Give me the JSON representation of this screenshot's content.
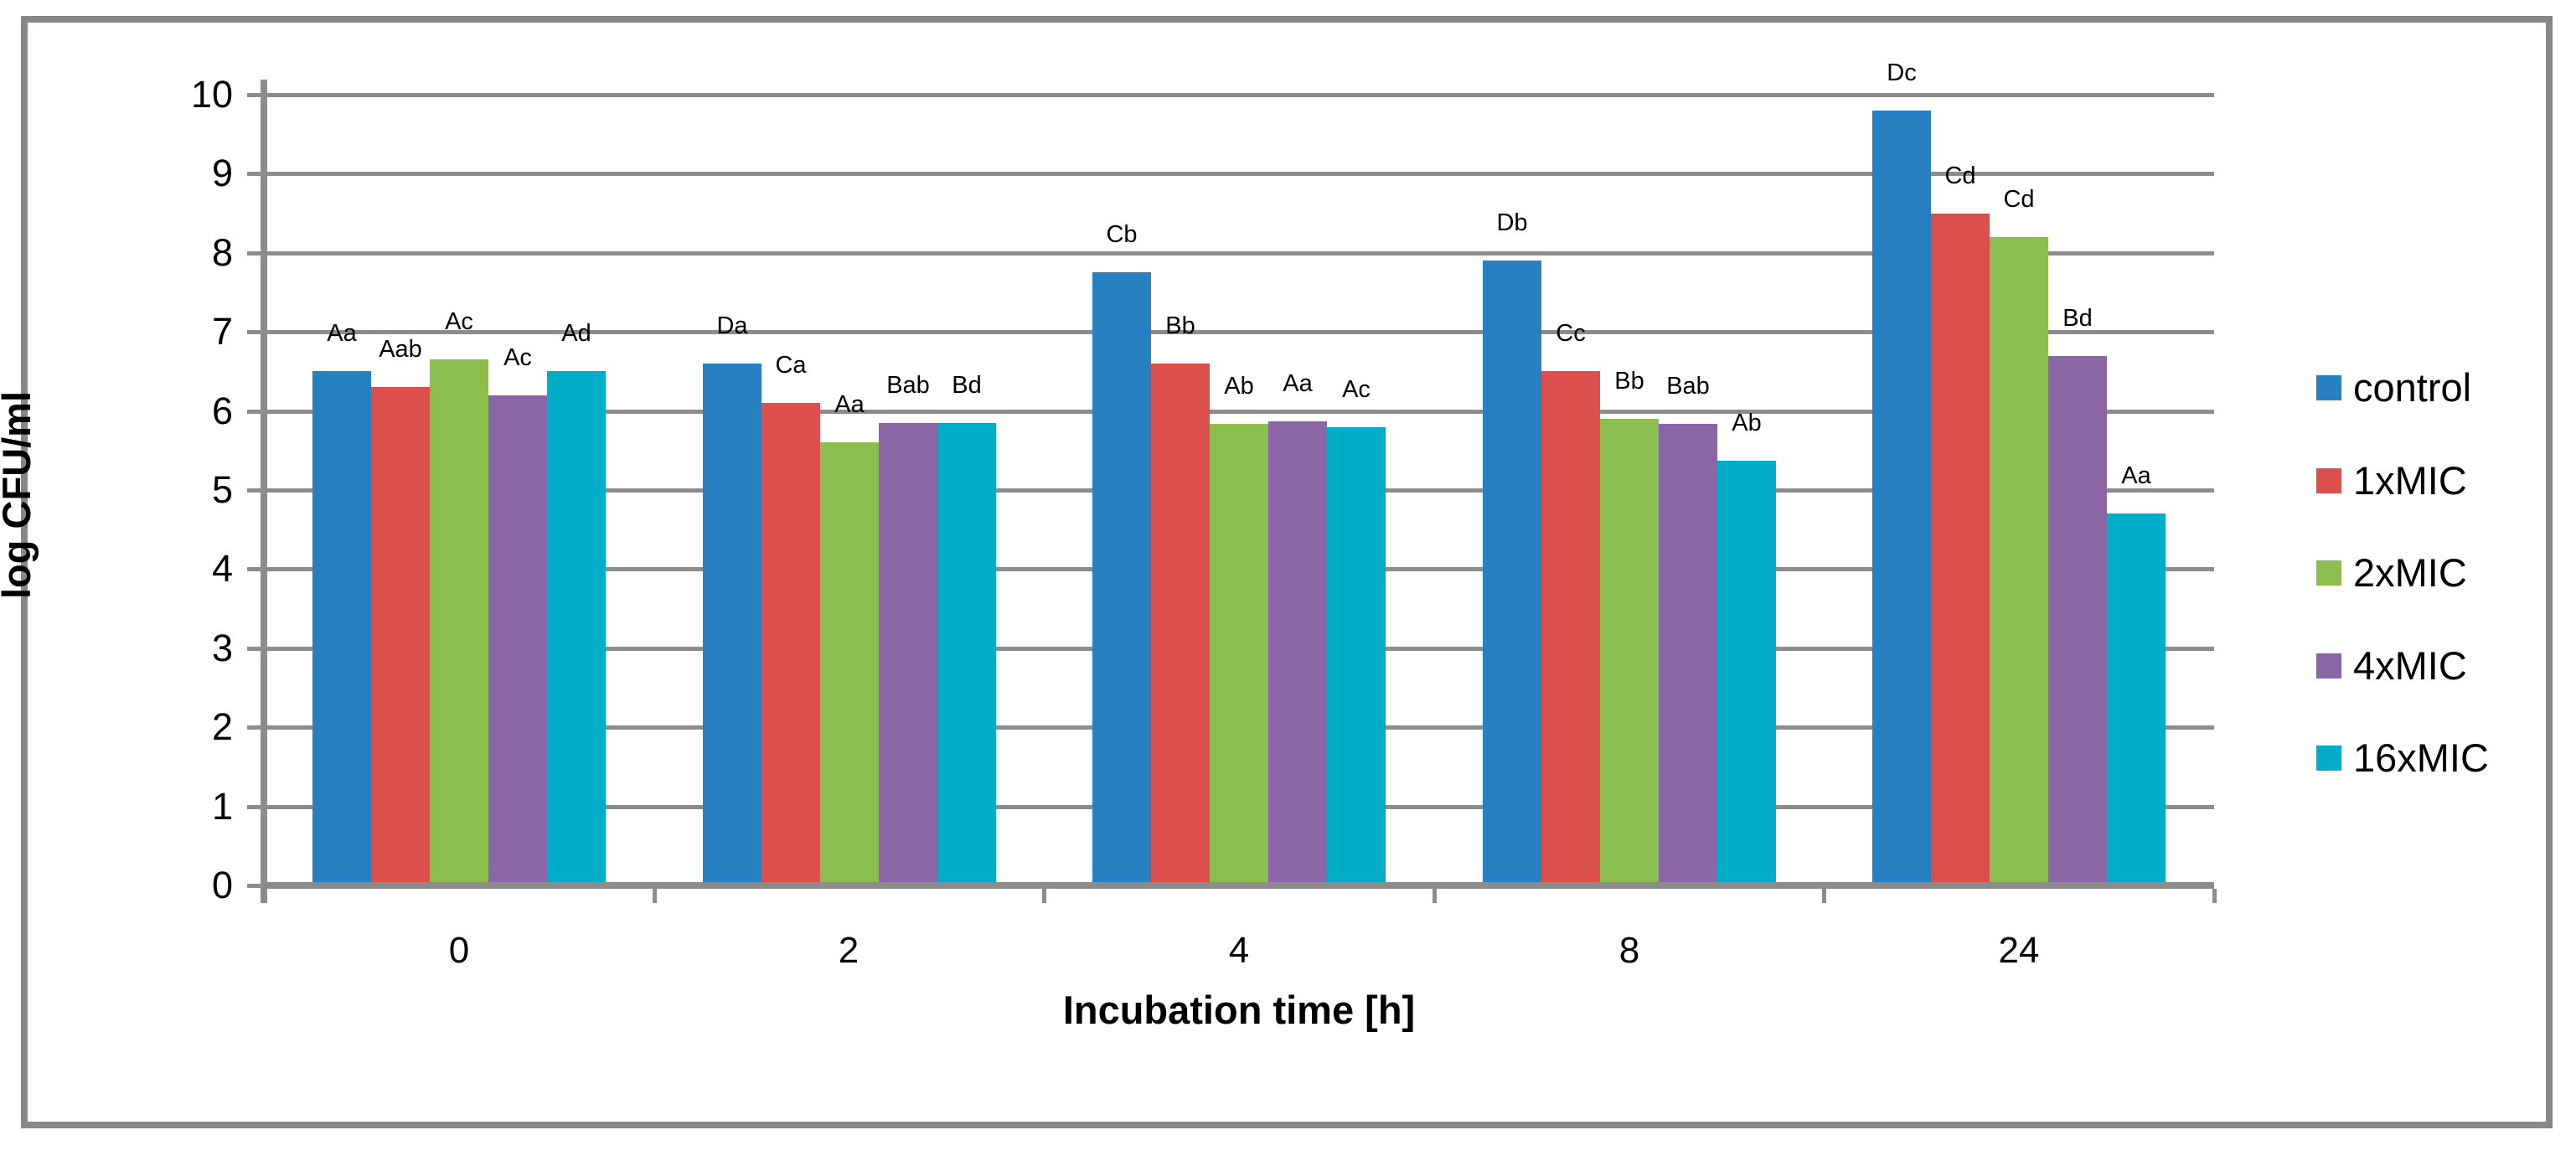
{
  "chart_data": {
    "type": "bar",
    "title": "",
    "xlabel": "Incubation time [h]",
    "ylabel": "log CFU/ml",
    "ylim": [
      0,
      10
    ],
    "yticks": [
      0,
      1,
      2,
      3,
      4,
      5,
      6,
      7,
      8,
      9,
      10
    ],
    "grid": true,
    "legend_position": "right",
    "categories": [
      "0",
      "2",
      "4",
      "8",
      "24"
    ],
    "series": [
      {
        "name": "control",
        "color": "#2680C2",
        "values": [
          6.5,
          6.6,
          7.75,
          7.9,
          9.8
        ],
        "bar_labels": [
          "Aa",
          "Da",
          "Cb",
          "Db",
          "Dc"
        ]
      },
      {
        "name": "1xMIC",
        "color": "#DB4F4C",
        "values": [
          6.3,
          6.1,
          6.6,
          6.5,
          8.5
        ],
        "bar_labels": [
          "Aab",
          "Ca",
          "Bb",
          "Cc",
          "Cd"
        ]
      },
      {
        "name": "2xMIC",
        "color": "#8CBD4F",
        "values": [
          6.65,
          5.6,
          5.84,
          5.9,
          8.2
        ],
        "bar_labels": [
          "Ac",
          "Aa",
          "Ab",
          "Bb",
          "Cd"
        ]
      },
      {
        "name": "4xMIC",
        "color": "#8B66A6",
        "values": [
          6.2,
          5.85,
          5.87,
          5.84,
          6.7
        ],
        "bar_labels": [
          "Ac",
          "Bab",
          "Aa",
          "Bab",
          "Bd"
        ]
      },
      {
        "name": "16xMIC",
        "color": "#00ACC8",
        "values": [
          6.5,
          5.85,
          5.79,
          5.37,
          4.7
        ],
        "bar_labels": [
          "Ad",
          "Bd",
          "Ac",
          "Ab",
          "Aa"
        ]
      }
    ],
    "colors": {
      "gridline": "#8C8C8C",
      "axis": "#8C8C8C",
      "frame": "#878787",
      "text": "#000000",
      "background": "#FFFFFF"
    }
  }
}
